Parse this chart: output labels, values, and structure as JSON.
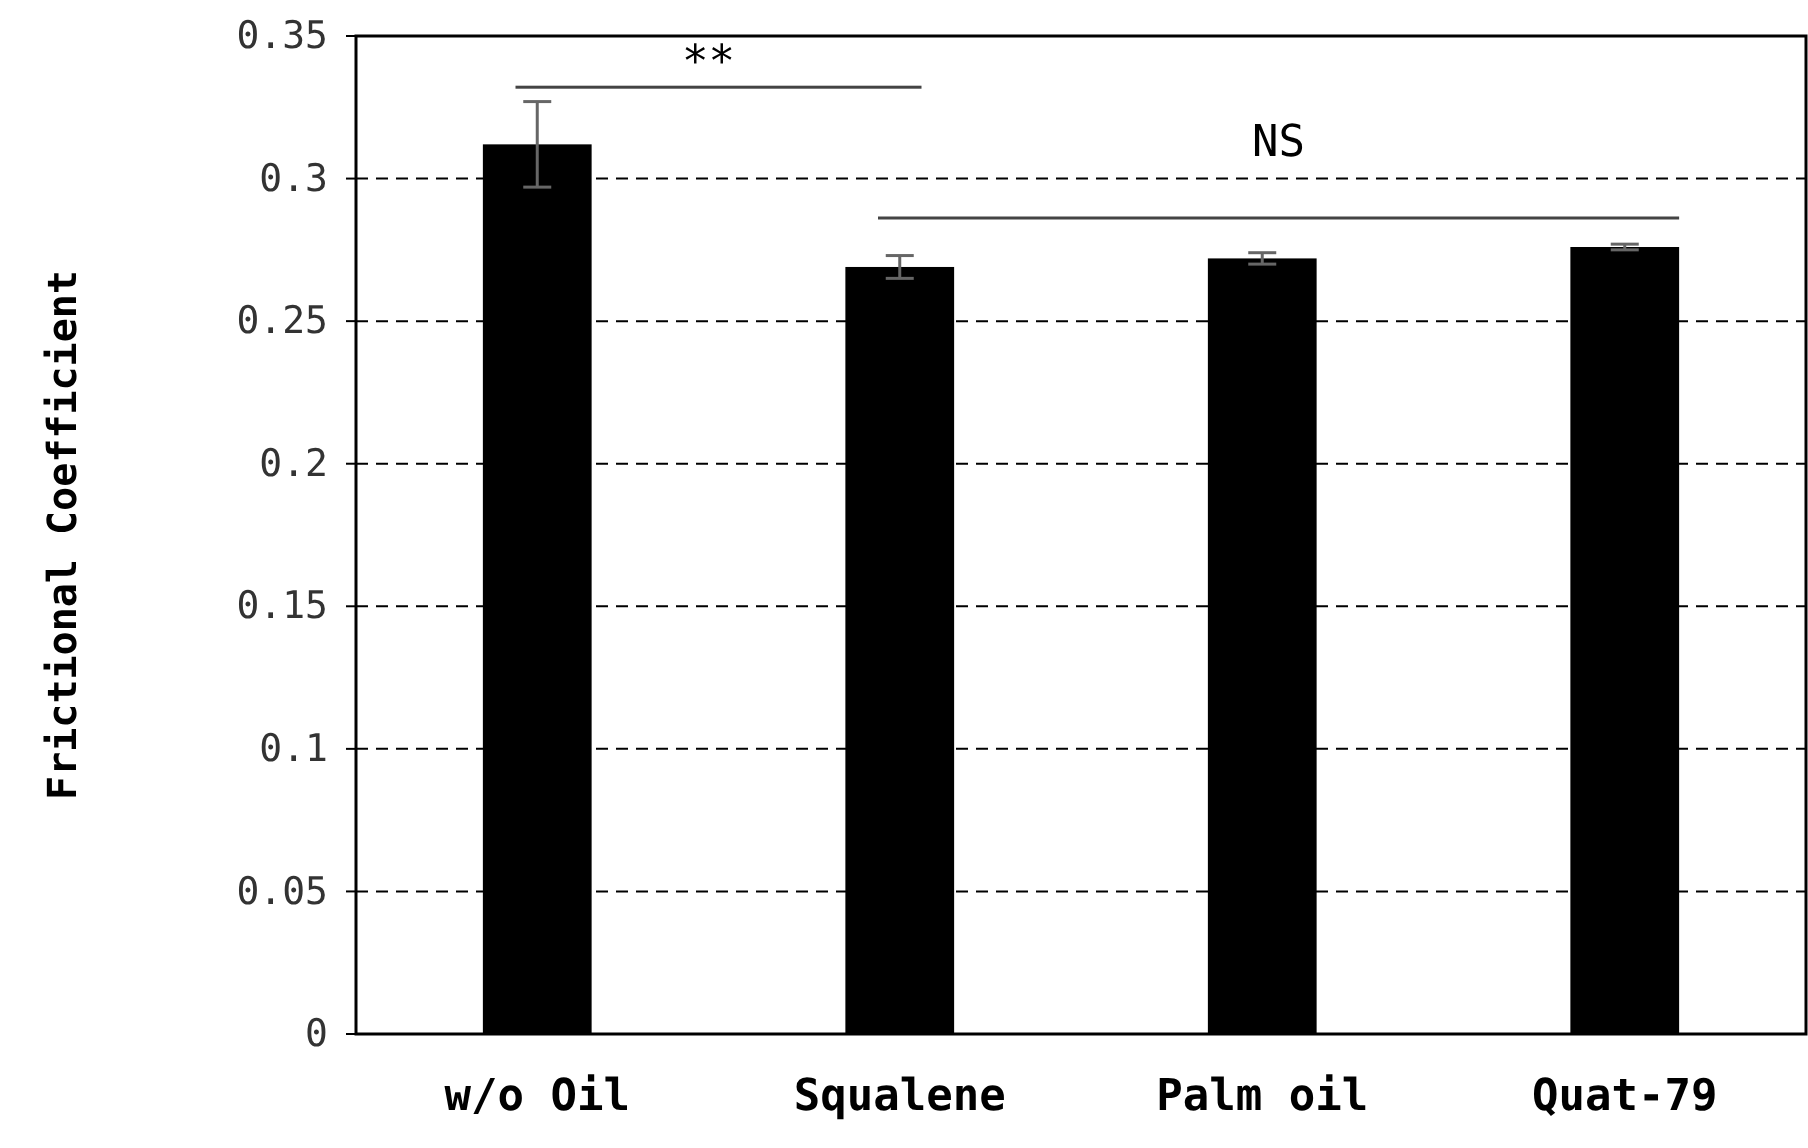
{
  "chart_data": {
    "type": "bar",
    "ylabel": "Frictional Coefficient",
    "categories": [
      "w/o Oil",
      "Squalene",
      "Palm oil",
      "Quat-79"
    ],
    "values": [
      0.312,
      0.269,
      0.272,
      0.276
    ],
    "color": "#000000",
    "errors": [
      0.015,
      0.004,
      0.002,
      0.001
    ],
    "ylim": [
      0,
      0.35
    ],
    "yticks": [
      0,
      0.05,
      0.1,
      0.15,
      0.2,
      0.25,
      0.3,
      0.35
    ],
    "grid": "y",
    "annotations": [
      "**",
      "NS"
    ]
  }
}
